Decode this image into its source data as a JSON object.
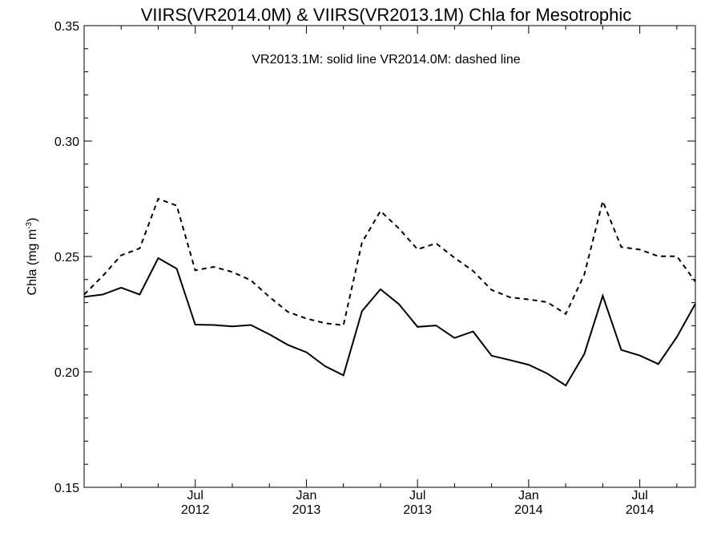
{
  "chart_data": {
    "type": "line",
    "title": "VIIRS(VR2014.0M) & VIIRS(VR2013.1M)  Chla for Mesotrophic",
    "annotation": "VR2013.1M: solid line   VR2014.0M: dashed line",
    "ylabel_main": "Chla (mg m",
    "ylabel_sup": "-3",
    "ylabel_close": ")",
    "ylim": [
      0.15,
      0.35
    ],
    "y_ticks": [
      "0.15",
      "0.20",
      "0.25",
      "0.30",
      "0.35"
    ],
    "x_tick_labels": [
      {
        "month": "Jul",
        "year": "2012"
      },
      {
        "month": "Jan",
        "year": "2013"
      },
      {
        "month": "Jul",
        "year": "2013"
      },
      {
        "month": "Jan",
        "year": "2014"
      },
      {
        "month": "Jul",
        "year": "2014"
      }
    ],
    "x_start": "2012-01",
    "x_end": "2014-10",
    "grid": false,
    "series": [
      {
        "name": "VR2013.1M",
        "style": "solid",
        "color": "#000000",
        "dates": [
          "2012-01",
          "2012-02",
          "2012-03",
          "2012-04",
          "2012-05",
          "2012-06",
          "2012-07",
          "2012-08",
          "2012-09",
          "2012-10",
          "2012-11",
          "2012-12",
          "2013-01",
          "2013-02",
          "2013-03",
          "2013-04",
          "2013-05",
          "2013-06",
          "2013-07",
          "2013-08",
          "2013-09",
          "2013-10",
          "2013-11",
          "2013-12",
          "2014-01",
          "2014-02",
          "2014-03",
          "2014-04",
          "2014-05",
          "2014-06",
          "2014-07",
          "2014-08",
          "2014-09",
          "2014-10"
        ],
        "values": [
          0.2325,
          0.2335,
          0.2365,
          0.2335,
          0.2493,
          0.2447,
          0.2205,
          0.2203,
          0.2197,
          0.2203,
          0.2163,
          0.2117,
          0.2085,
          0.2025,
          0.1985,
          0.2263,
          0.2358,
          0.2293,
          0.2195,
          0.2201,
          0.2147,
          0.2175,
          0.207,
          0.2051,
          0.2031,
          0.1993,
          0.1941,
          0.2077,
          0.233,
          0.2095,
          0.2071,
          0.2034,
          0.2151,
          0.2295
        ]
      },
      {
        "name": "VR2014.0M",
        "style": "dashed",
        "color": "#000000",
        "dates": [
          "2012-01",
          "2012-02",
          "2012-03",
          "2012-04",
          "2012-05",
          "2012-06",
          "2012-07",
          "2012-08",
          "2012-09",
          "2012-10",
          "2012-11",
          "2012-12",
          "2013-01",
          "2013-02",
          "2013-03",
          "2013-04",
          "2013-05",
          "2013-06",
          "2013-07",
          "2013-08",
          "2013-09",
          "2013-10",
          "2013-11",
          "2013-12",
          "2014-01",
          "2014-02",
          "2014-03",
          "2014-04",
          "2014-05",
          "2014-06",
          "2014-07",
          "2014-08",
          "2014-09",
          "2014-10"
        ],
        "values": [
          0.2335,
          0.2415,
          0.2505,
          0.2535,
          0.275,
          0.272,
          0.244,
          0.2455,
          0.2433,
          0.2397,
          0.2325,
          0.226,
          0.2231,
          0.2211,
          0.2202,
          0.256,
          0.2697,
          0.2621,
          0.2531,
          0.2557,
          0.2494,
          0.2437,
          0.2355,
          0.2323,
          0.2314,
          0.2302,
          0.2251,
          0.2421,
          0.274,
          0.2541,
          0.253,
          0.2501,
          0.2501,
          0.2391
        ]
      }
    ]
  }
}
